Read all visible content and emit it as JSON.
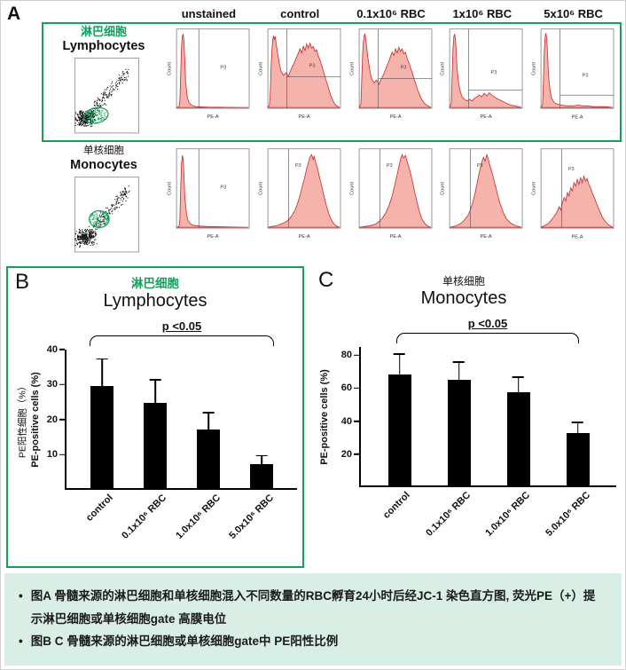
{
  "panel_a": {
    "label": "A",
    "col_headers": [
      "unstained",
      "control",
      "0.1x10⁶ RBC",
      "1x10⁶ RBC",
      "5x10⁶ RBC"
    ],
    "rows": [
      {
        "name_cn": "淋巴细胞",
        "name_en": "Lymphocytes",
        "gate_label": "P3"
      },
      {
        "name_cn": "单核细胞",
        "name_en": "Monocytes",
        "gate_label": "P3"
      }
    ],
    "hist_xlabel": "PE-A",
    "hist_ylabel": "Count"
  },
  "chart_data": [
    {
      "panel_label": "B",
      "type": "bar",
      "title_cn": "淋巴细胞",
      "title_en": "Lymphocytes",
      "annotation": "p <0.05",
      "categories": [
        "control",
        "0.1x10⁶ RBC",
        "1.0x10⁶ RBC",
        "5.0x10⁶ RBC"
      ],
      "values": [
        29.5,
        24.5,
        17,
        7
      ],
      "errors": [
        8,
        7,
        5,
        2.5
      ],
      "ylabel_cn": "PE阳性细胞（%）",
      "ylabel_en": "PE-positive cells (%)",
      "ylim": [
        0,
        40
      ],
      "yticks": [
        10,
        20,
        30,
        40
      ],
      "bar_color": "#000000",
      "legend": "none",
      "grid": false
    },
    {
      "panel_label": "C",
      "type": "bar",
      "title_cn": "单核细胞",
      "title_en": "Monocytes",
      "annotation": "p <0.05",
      "categories": [
        "control",
        "0.1x10⁶ RBC",
        "1.0x10⁶ RBC",
        "5.0x10⁶ RBC"
      ],
      "values": [
        68,
        65,
        57,
        32
      ],
      "errors": [
        13,
        11,
        10,
        7
      ],
      "ylabel_en": "PE-positive cells (%)",
      "ylim": [
        0,
        85
      ],
      "yticks": [
        20,
        40,
        60,
        80
      ],
      "bar_color": "#000000",
      "legend": "none",
      "grid": false
    }
  ],
  "caption": {
    "bullet": "•",
    "items": [
      "图A 骨髓来源的淋巴细胞和单核细胞混入不同数量的RBC孵育24小时后经JC-1 染色直方图, 荧光PE（+）提示淋巴细胞或单核细胞gate 高膜电位",
      "图B C 骨髓来源的淋巴细胞或单核细胞gate中 PE阳性比例"
    ]
  },
  "colors": {
    "accent_green": "#12A05C",
    "caption_bg": "#D9EEE4",
    "hist_fill": "#F6AFA6",
    "hist_stroke": "#C63030",
    "bar": "#000000"
  }
}
